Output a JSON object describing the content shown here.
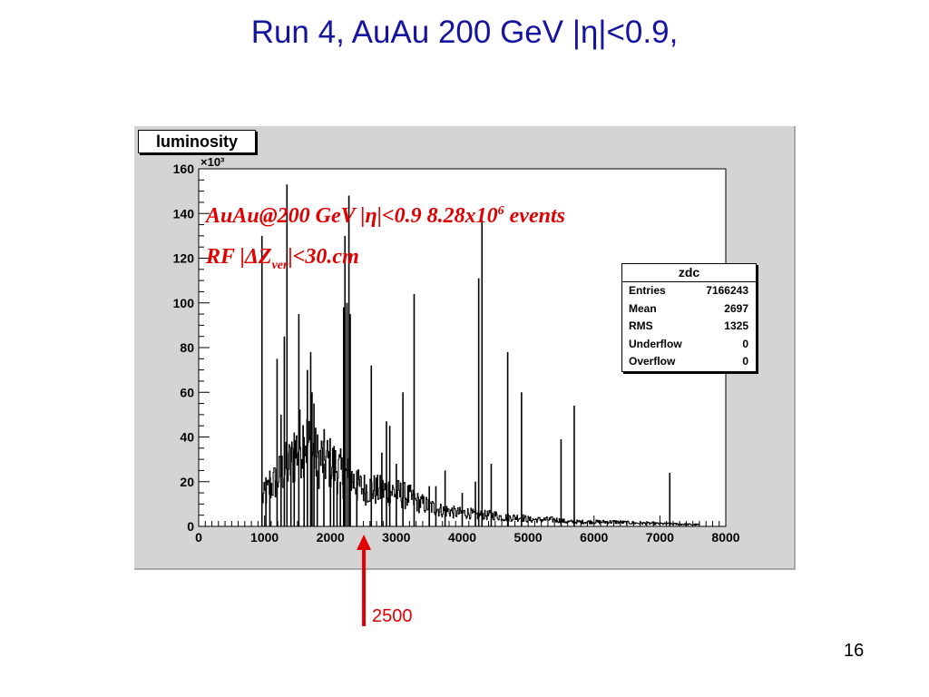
{
  "slide": {
    "title": "Run 4, AuAu 200 GeV |η|<0.9,",
    "page_number": "16"
  },
  "annotation": {
    "line1_a": "AuAu@200 GeV |η|<0.9 8.28x10",
    "line1_sup": "6",
    "line1_b": " events",
    "line2_a": "RF |ΔZ",
    "line2_sub": "ver",
    "line2_b": "|<30.cm"
  },
  "arrow": {
    "label": "2500",
    "x_value": 2500,
    "color": "#e00000"
  },
  "stats": {
    "title": "zdc",
    "rows": [
      {
        "label": "Entries",
        "value": "7166243"
      },
      {
        "label": "Mean",
        "value": "2697"
      },
      {
        "label": "RMS",
        "value": "1325"
      },
      {
        "label": "Underflow",
        "value": "0"
      },
      {
        "label": "Overflow",
        "value": "0"
      }
    ]
  },
  "colors": {
    "title": "#1414a0",
    "annotation": "#e00000",
    "canvas": "#d4d4d4",
    "frame": "#ffffff"
  },
  "chart_data": {
    "type": "histogram",
    "title": "luminosity",
    "y_multiplier": "×10³",
    "xlim": [
      0,
      8000
    ],
    "ylim": [
      0,
      160
    ],
    "x_ticks": [
      "0",
      "1000",
      "2000",
      "3000",
      "4000",
      "5000",
      "6000",
      "7000",
      "8000"
    ],
    "y_ticks": [
      "0",
      "20",
      "40",
      "60",
      "80",
      "100",
      "120",
      "140",
      "160"
    ],
    "baseline": [
      [
        950,
        12
      ],
      [
        1000,
        14
      ],
      [
        1100,
        18
      ],
      [
        1200,
        22
      ],
      [
        1300,
        26
      ],
      [
        1400,
        28
      ],
      [
        1500,
        36
      ],
      [
        1600,
        40
      ],
      [
        1700,
        34
      ],
      [
        1800,
        30
      ],
      [
        1900,
        30
      ],
      [
        2000,
        28
      ],
      [
        2100,
        26
      ],
      [
        2200,
        22
      ],
      [
        2300,
        22
      ],
      [
        2400,
        18
      ],
      [
        2500,
        17
      ],
      [
        2600,
        17
      ],
      [
        2700,
        16
      ],
      [
        2800,
        16
      ],
      [
        2900,
        16
      ],
      [
        3000,
        15
      ],
      [
        3100,
        14
      ],
      [
        3200,
        13
      ],
      [
        3300,
        11
      ],
      [
        3400,
        10
      ],
      [
        3500,
        9
      ],
      [
        3600,
        8
      ],
      [
        3700,
        7
      ],
      [
        3800,
        7
      ],
      [
        3900,
        6
      ],
      [
        4000,
        6
      ],
      [
        4100,
        6
      ],
      [
        4200,
        5
      ],
      [
        4300,
        5
      ],
      [
        4400,
        5
      ],
      [
        4500,
        5
      ],
      [
        4600,
        4
      ],
      [
        4700,
        4
      ],
      [
        4800,
        4
      ],
      [
        4900,
        4
      ],
      [
        5000,
        3
      ],
      [
        5200,
        3
      ],
      [
        5400,
        3
      ],
      [
        5600,
        2
      ],
      [
        5800,
        2
      ],
      [
        6000,
        2
      ],
      [
        6300,
        2
      ],
      [
        6600,
        1.5
      ],
      [
        7000,
        1.2
      ],
      [
        7300,
        1
      ],
      [
        7500,
        0.8
      ]
    ],
    "spikes": [
      [
        960,
        130
      ],
      [
        1020,
        22
      ],
      [
        1080,
        25
      ],
      [
        1190,
        75
      ],
      [
        1250,
        50
      ],
      [
        1300,
        85
      ],
      [
        1340,
        153
      ],
      [
        1400,
        35
      ],
      [
        1450,
        42
      ],
      [
        1520,
        95
      ],
      [
        1600,
        40
      ],
      [
        1650,
        70
      ],
      [
        1700,
        78
      ],
      [
        1720,
        60
      ],
      [
        1750,
        55
      ],
      [
        1800,
        25
      ],
      [
        1900,
        28
      ],
      [
        2000,
        23
      ],
      [
        2050,
        25
      ],
      [
        2100,
        20
      ],
      [
        2150,
        20
      ],
      [
        2200,
        98
      ],
      [
        2220,
        130
      ],
      [
        2250,
        100
      ],
      [
        2280,
        148
      ],
      [
        2300,
        95
      ],
      [
        2400,
        25
      ],
      [
        2620,
        72
      ],
      [
        2780,
        33
      ],
      [
        2850,
        47
      ],
      [
        2900,
        45
      ],
      [
        3000,
        28
      ],
      [
        3100,
        60
      ],
      [
        3270,
        104
      ],
      [
        3500,
        18
      ],
      [
        3600,
        18
      ],
      [
        3740,
        25
      ],
      [
        4000,
        15
      ],
      [
        4200,
        20
      ],
      [
        4250,
        111
      ],
      [
        4300,
        137
      ],
      [
        4440,
        28
      ],
      [
        4690,
        78
      ],
      [
        4900,
        60
      ],
      [
        5500,
        39
      ],
      [
        5700,
        54
      ],
      [
        7150,
        24
      ]
    ]
  }
}
